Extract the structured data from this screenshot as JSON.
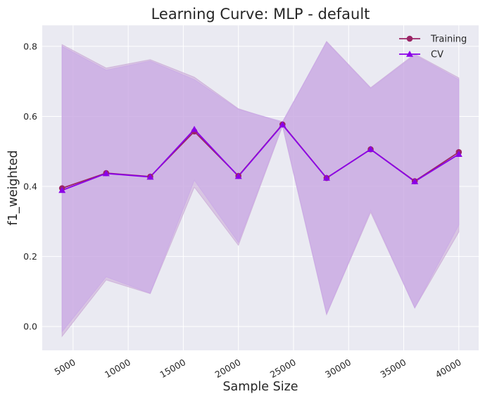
{
  "chart_data": {
    "type": "line",
    "title": "Learning Curve: MLP - default",
    "xlabel": "Sample Size",
    "ylabel": "f1_weighted",
    "xlim": [
      2200,
      41800
    ],
    "ylim": [
      -0.068,
      0.86
    ],
    "xticks": [
      5000,
      10000,
      15000,
      20000,
      25000,
      30000,
      35000,
      40000
    ],
    "yticks": [
      0.0,
      0.2,
      0.4,
      0.6,
      0.8
    ],
    "ytick_labels": [
      "0.0",
      "0.2",
      "0.4",
      "0.6",
      "0.8"
    ],
    "grid": true,
    "legend_position": "top-right",
    "x": [
      4000,
      8000,
      12000,
      16000,
      20000,
      24000,
      28000,
      32000,
      36000,
      40000
    ],
    "series": [
      {
        "name": "Training",
        "marker": "circle",
        "color": "#9b2566",
        "band_color": "#c9a6d6",
        "values": [
          0.395,
          0.438,
          0.428,
          0.557,
          0.43,
          0.577,
          0.424,
          0.506,
          0.415,
          0.498
        ],
        "upper": [
          0.805,
          0.738,
          0.762,
          0.712,
          0.622,
          0.582,
          0.814,
          0.682,
          0.778,
          0.71
        ],
        "lower": [
          -0.028,
          0.133,
          0.094,
          0.398,
          0.232,
          0.572,
          0.034,
          0.326,
          0.053,
          0.27
        ]
      },
      {
        "name": "CV",
        "marker": "triangle",
        "color": "#8b00e8",
        "band_color": "#c9a6e8",
        "values": [
          0.389,
          0.437,
          0.427,
          0.563,
          0.429,
          0.576,
          0.424,
          0.506,
          0.414,
          0.492
        ],
        "upper": [
          0.8,
          0.732,
          0.758,
          0.705,
          0.62,
          0.585,
          0.812,
          0.68,
          0.775,
          0.705
        ],
        "lower": [
          -0.015,
          0.142,
          0.095,
          0.418,
          0.24,
          0.575,
          0.036,
          0.332,
          0.053,
          0.29
        ]
      }
    ]
  }
}
